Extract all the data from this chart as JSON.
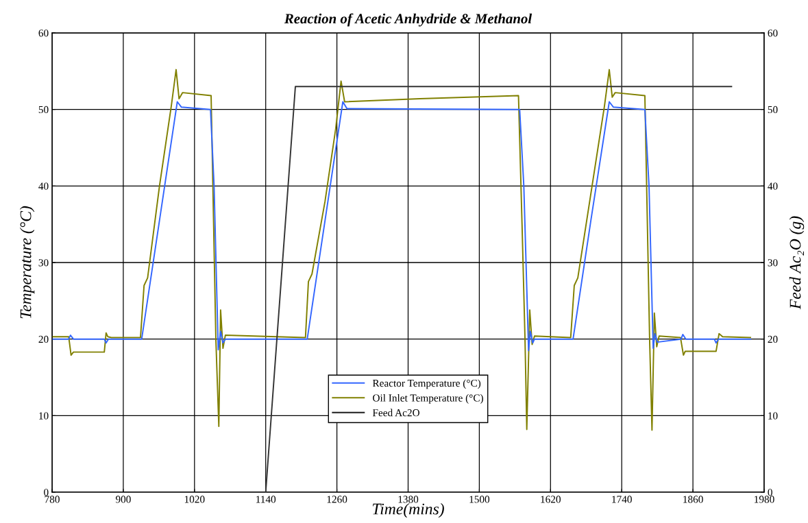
{
  "chart_data": {
    "type": "line",
    "title": "Reaction of Acetic Anhydride & Methanol",
    "xlabel": "Time(mins)",
    "ylabel": "Temperature (°C)",
    "y2label": "Feed Ac₂O (g)",
    "xlim": [
      780,
      1980
    ],
    "xticks": [
      780,
      900,
      1020,
      1140,
      1260,
      1380,
      1500,
      1620,
      1740,
      1860,
      1980
    ],
    "ylim": [
      0,
      60
    ],
    "yticks": [
      0,
      10,
      20,
      30,
      40,
      50,
      60
    ],
    "y2lim": [
      0,
      60
    ],
    "y2ticks": [
      0,
      10,
      20,
      30,
      40,
      50,
      60
    ],
    "grid": true,
    "legend": "bottom",
    "marker": "none",
    "line_style": "solid",
    "series": [
      {
        "name": "Reactor Temperature (°C)",
        "color": "#3366ff",
        "x": [
          780,
          808,
          811,
          816,
          868,
          871,
          875,
          931,
          961,
          991,
          998,
          1047,
          1053,
          1060,
          1064,
          1068,
          1072,
          1210,
          1240,
          1270,
          1277,
          1568,
          1575,
          1583,
          1586,
          1590,
          1593,
          1658,
          1688,
          1719,
          1726,
          1779,
          1786,
          1793,
          1796,
          1800,
          1840,
          1843,
          1848,
          1896,
          1899,
          1903,
          1957
        ],
        "values": [
          20,
          20,
          20.5,
          20,
          20,
          19.5,
          20,
          20,
          35.5,
          51,
          50.3,
          50,
          40,
          18.6,
          21,
          19.5,
          20,
          20,
          35.5,
          51,
          50.1,
          50,
          40,
          18.5,
          21,
          19.5,
          20,
          20,
          35.5,
          51,
          50.3,
          50,
          40,
          18.8,
          20.7,
          19.6,
          20,
          20.6,
          20,
          20,
          19.5,
          20,
          20
        ]
      },
      {
        "name": "Oil Inlet Temperature (°C)",
        "color": "#808000",
        "x": [
          780,
          808,
          812,
          816,
          868,
          871,
          874,
          880,
          929,
          935,
          941,
          961,
          981,
          989,
          994,
          1000,
          1048,
          1056,
          1061,
          1064,
          1068,
          1072,
          1207,
          1212,
          1218,
          1240,
          1258,
          1267,
          1273,
          1400,
          1566,
          1572,
          1577,
          1580,
          1585,
          1589,
          1593,
          1654,
          1660,
          1666,
          1690,
          1711,
          1719,
          1724,
          1729,
          1779,
          1787,
          1791,
          1795,
          1799,
          1803,
          1839,
          1844,
          1847,
          1899,
          1904,
          1910,
          1957
        ],
        "values": [
          20.3,
          20.3,
          17.9,
          18.3,
          18.3,
          20.8,
          20.3,
          20.2,
          20.2,
          27,
          28,
          40,
          50.5,
          55.2,
          51.4,
          52.2,
          51.8,
          20,
          8.6,
          23.8,
          18.8,
          20.5,
          20.2,
          27.5,
          28.5,
          38,
          47.5,
          53.7,
          51,
          51.4,
          51.8,
          35,
          20,
          8.2,
          23.8,
          19.3,
          20.4,
          20.2,
          27,
          28,
          40,
          50.5,
          55.2,
          51.6,
          52.2,
          51.8,
          20,
          8.1,
          23.4,
          19,
          20.4,
          20.2,
          17.9,
          18.4,
          18.4,
          20.7,
          20.3,
          20.2
        ]
      },
      {
        "name": "Feed Ac2O",
        "color": "#333333",
        "axis": "y2",
        "x": [
          1140,
          1190,
          1925
        ],
        "values": [
          0,
          53,
          53
        ]
      }
    ]
  }
}
